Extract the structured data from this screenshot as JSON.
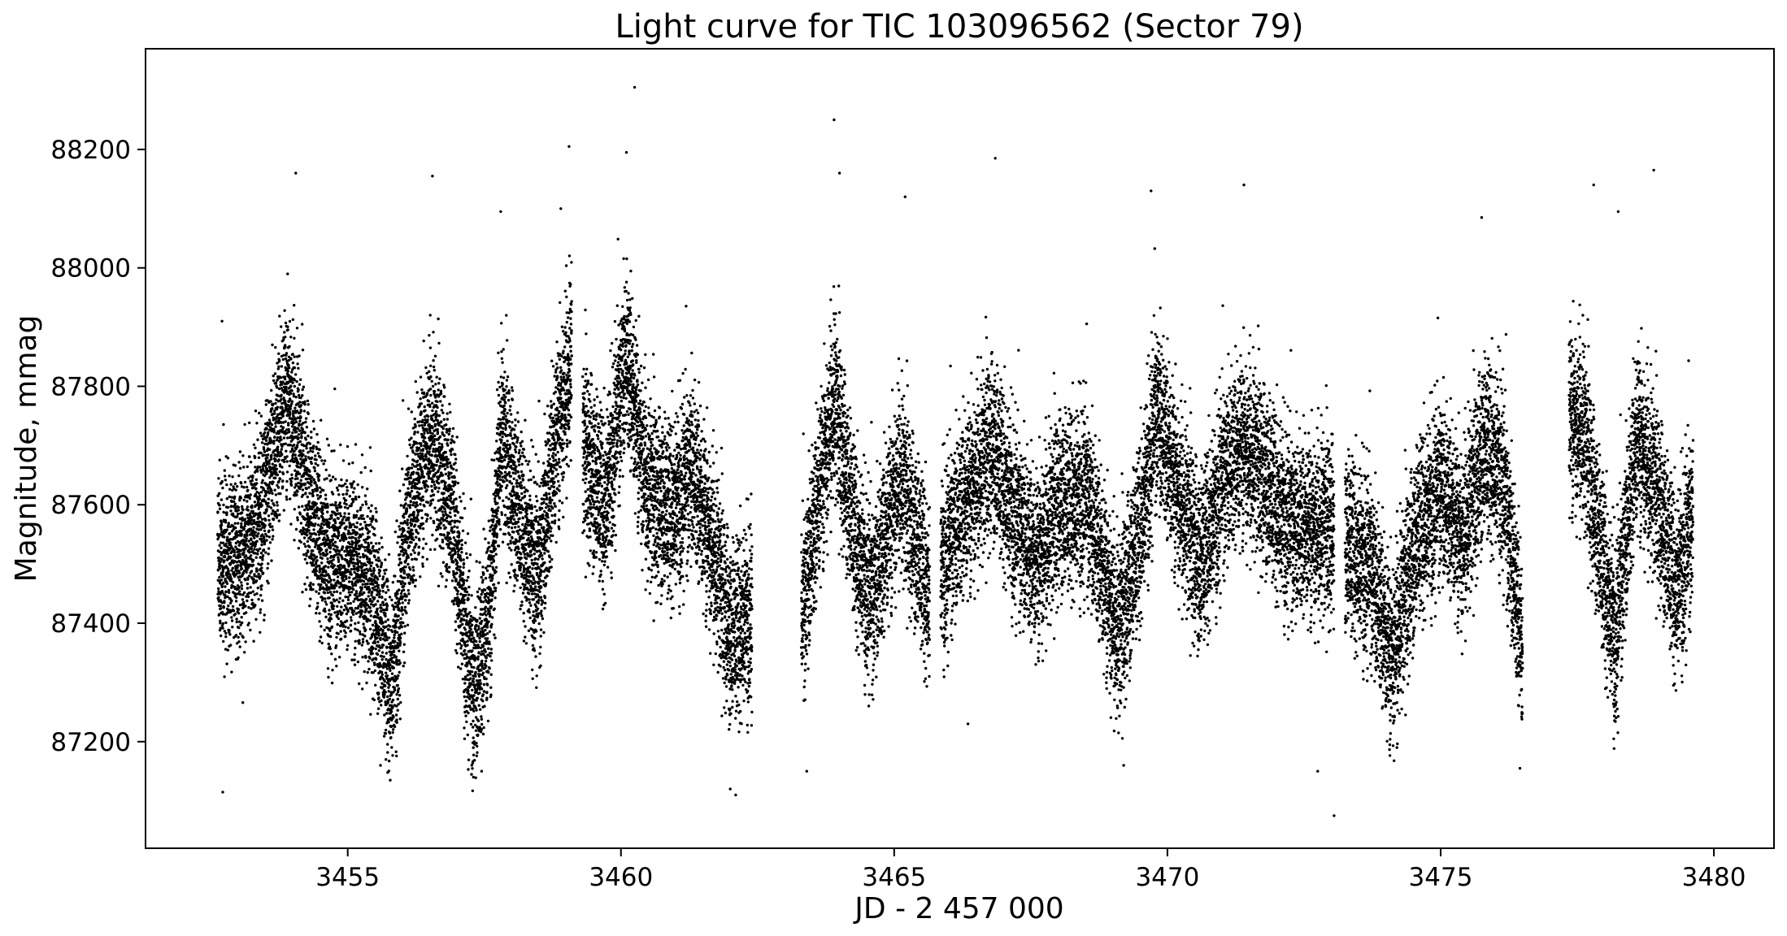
{
  "chart_data": {
    "type": "scatter",
    "title": "Light curve for TIC 103096562 (Sector 79)",
    "xlabel": "JD - 2 457 000",
    "ylabel": "Magnitude, mmag",
    "xlim": [
      3451.3,
      3481.1
    ],
    "ylim": [
      87020,
      88370
    ],
    "x_ticks": [
      3455,
      3460,
      3465,
      3470,
      3475,
      3480
    ],
    "y_ticks": [
      87200,
      87400,
      87600,
      87800,
      88000,
      88200
    ],
    "grid": false,
    "legend": "none",
    "marker_color": "#000000",
    "segments": [
      {
        "x_range": [
          3452.62,
          3459.1
        ],
        "points_per_day": 1050
      },
      {
        "x_range": [
          3459.3,
          3462.4
        ],
        "points_per_day": 1050
      },
      {
        "x_range": [
          3463.3,
          3465.65
        ],
        "points_per_day": 1050
      },
      {
        "x_range": [
          3465.85,
          3473.05
        ],
        "points_per_day": 1050
      },
      {
        "x_range": [
          3473.25,
          3476.5
        ],
        "points_per_day": 1050
      },
      {
        "x_range": [
          3477.35,
          3479.62
        ],
        "points_per_day": 1050
      }
    ],
    "trend": [
      [
        3452.6,
        87500
      ],
      [
        3453.0,
        87505
      ],
      [
        3453.4,
        87580
      ],
      [
        3453.9,
        87790
      ],
      [
        3454.3,
        87600
      ],
      [
        3454.7,
        87500
      ],
      [
        3455.1,
        87510
      ],
      [
        3455.5,
        87440
      ],
      [
        3455.8,
        87300
      ],
      [
        3456.1,
        87560
      ],
      [
        3456.5,
        87720
      ],
      [
        3456.9,
        87600
      ],
      [
        3457.3,
        87280
      ],
      [
        3457.6,
        87420
      ],
      [
        3457.8,
        87720
      ],
      [
        3458.2,
        87560
      ],
      [
        3458.5,
        87480
      ],
      [
        3458.8,
        87700
      ],
      [
        3459.1,
        87850
      ],
      [
        3459.3,
        87700
      ],
      [
        3459.7,
        87600
      ],
      [
        3460.1,
        87850
      ],
      [
        3460.5,
        87620
      ],
      [
        3460.9,
        87590
      ],
      [
        3461.3,
        87660
      ],
      [
        3461.7,
        87520
      ],
      [
        3462.0,
        87380
      ],
      [
        3462.4,
        87430
      ],
      [
        3463.3,
        87400
      ],
      [
        3463.6,
        87600
      ],
      [
        3463.9,
        87780
      ],
      [
        3464.3,
        87540
      ],
      [
        3464.6,
        87440
      ],
      [
        3465.1,
        87650
      ],
      [
        3465.65,
        87450
      ],
      [
        3465.85,
        87500
      ],
      [
        3466.3,
        87600
      ],
      [
        3466.8,
        87700
      ],
      [
        3467.3,
        87560
      ],
      [
        3467.6,
        87500
      ],
      [
        3468.0,
        87600
      ],
      [
        3468.5,
        87620
      ],
      [
        3469.1,
        87380
      ],
      [
        3469.5,
        87560
      ],
      [
        3469.8,
        87760
      ],
      [
        3470.2,
        87620
      ],
      [
        3470.6,
        87500
      ],
      [
        3471.0,
        87640
      ],
      [
        3471.4,
        87700
      ],
      [
        3471.8,
        87640
      ],
      [
        3472.3,
        87560
      ],
      [
        3472.7,
        87560
      ],
      [
        3473.05,
        87560
      ],
      [
        3473.25,
        87540
      ],
      [
        3473.7,
        87500
      ],
      [
        3474.1,
        87340
      ],
      [
        3474.6,
        87560
      ],
      [
        3475.0,
        87630
      ],
      [
        3475.4,
        87540
      ],
      [
        3475.8,
        87700
      ],
      [
        3476.1,
        87670
      ],
      [
        3476.5,
        87350
      ],
      [
        3477.35,
        87750
      ],
      [
        3477.6,
        87730
      ],
      [
        3478.0,
        87480
      ],
      [
        3478.2,
        87380
      ],
      [
        3478.6,
        87720
      ],
      [
        3479.0,
        87600
      ],
      [
        3479.3,
        87460
      ],
      [
        3479.62,
        87580
      ]
    ],
    "scatter_width_mmag": 75,
    "outliers": [
      [
        3452.7,
        87910
      ],
      [
        3454.05,
        88160
      ],
      [
        3456.55,
        88155
      ],
      [
        3457.8,
        88095
      ],
      [
        3458.9,
        88100
      ],
      [
        3459.05,
        88205
      ],
      [
        3460.1,
        88195
      ],
      [
        3460.25,
        88305
      ],
      [
        3463.9,
        88250
      ],
      [
        3464.0,
        88160
      ],
      [
        3465.2,
        88120
      ],
      [
        3466.85,
        88185
      ],
      [
        3469.7,
        88130
      ],
      [
        3471.4,
        88140
      ],
      [
        3475.75,
        88085
      ],
      [
        3477.8,
        88140
      ],
      [
        3478.25,
        88095
      ],
      [
        3478.9,
        88165
      ],
      [
        3457.3,
        87140
      ],
      [
        3457.45,
        87150
      ],
      [
        3462.0,
        87120
      ],
      [
        3462.1,
        87110
      ],
      [
        3463.4,
        87150
      ],
      [
        3466.35,
        87230
      ],
      [
        3469.2,
        87160
      ],
      [
        3472.75,
        87150
      ],
      [
        3473.05,
        87075
      ],
      [
        3476.45,
        87155
      ],
      [
        3455.6,
        87160
      ],
      [
        3455.7,
        87170
      ],
      [
        3474.2,
        87190
      ]
    ]
  }
}
